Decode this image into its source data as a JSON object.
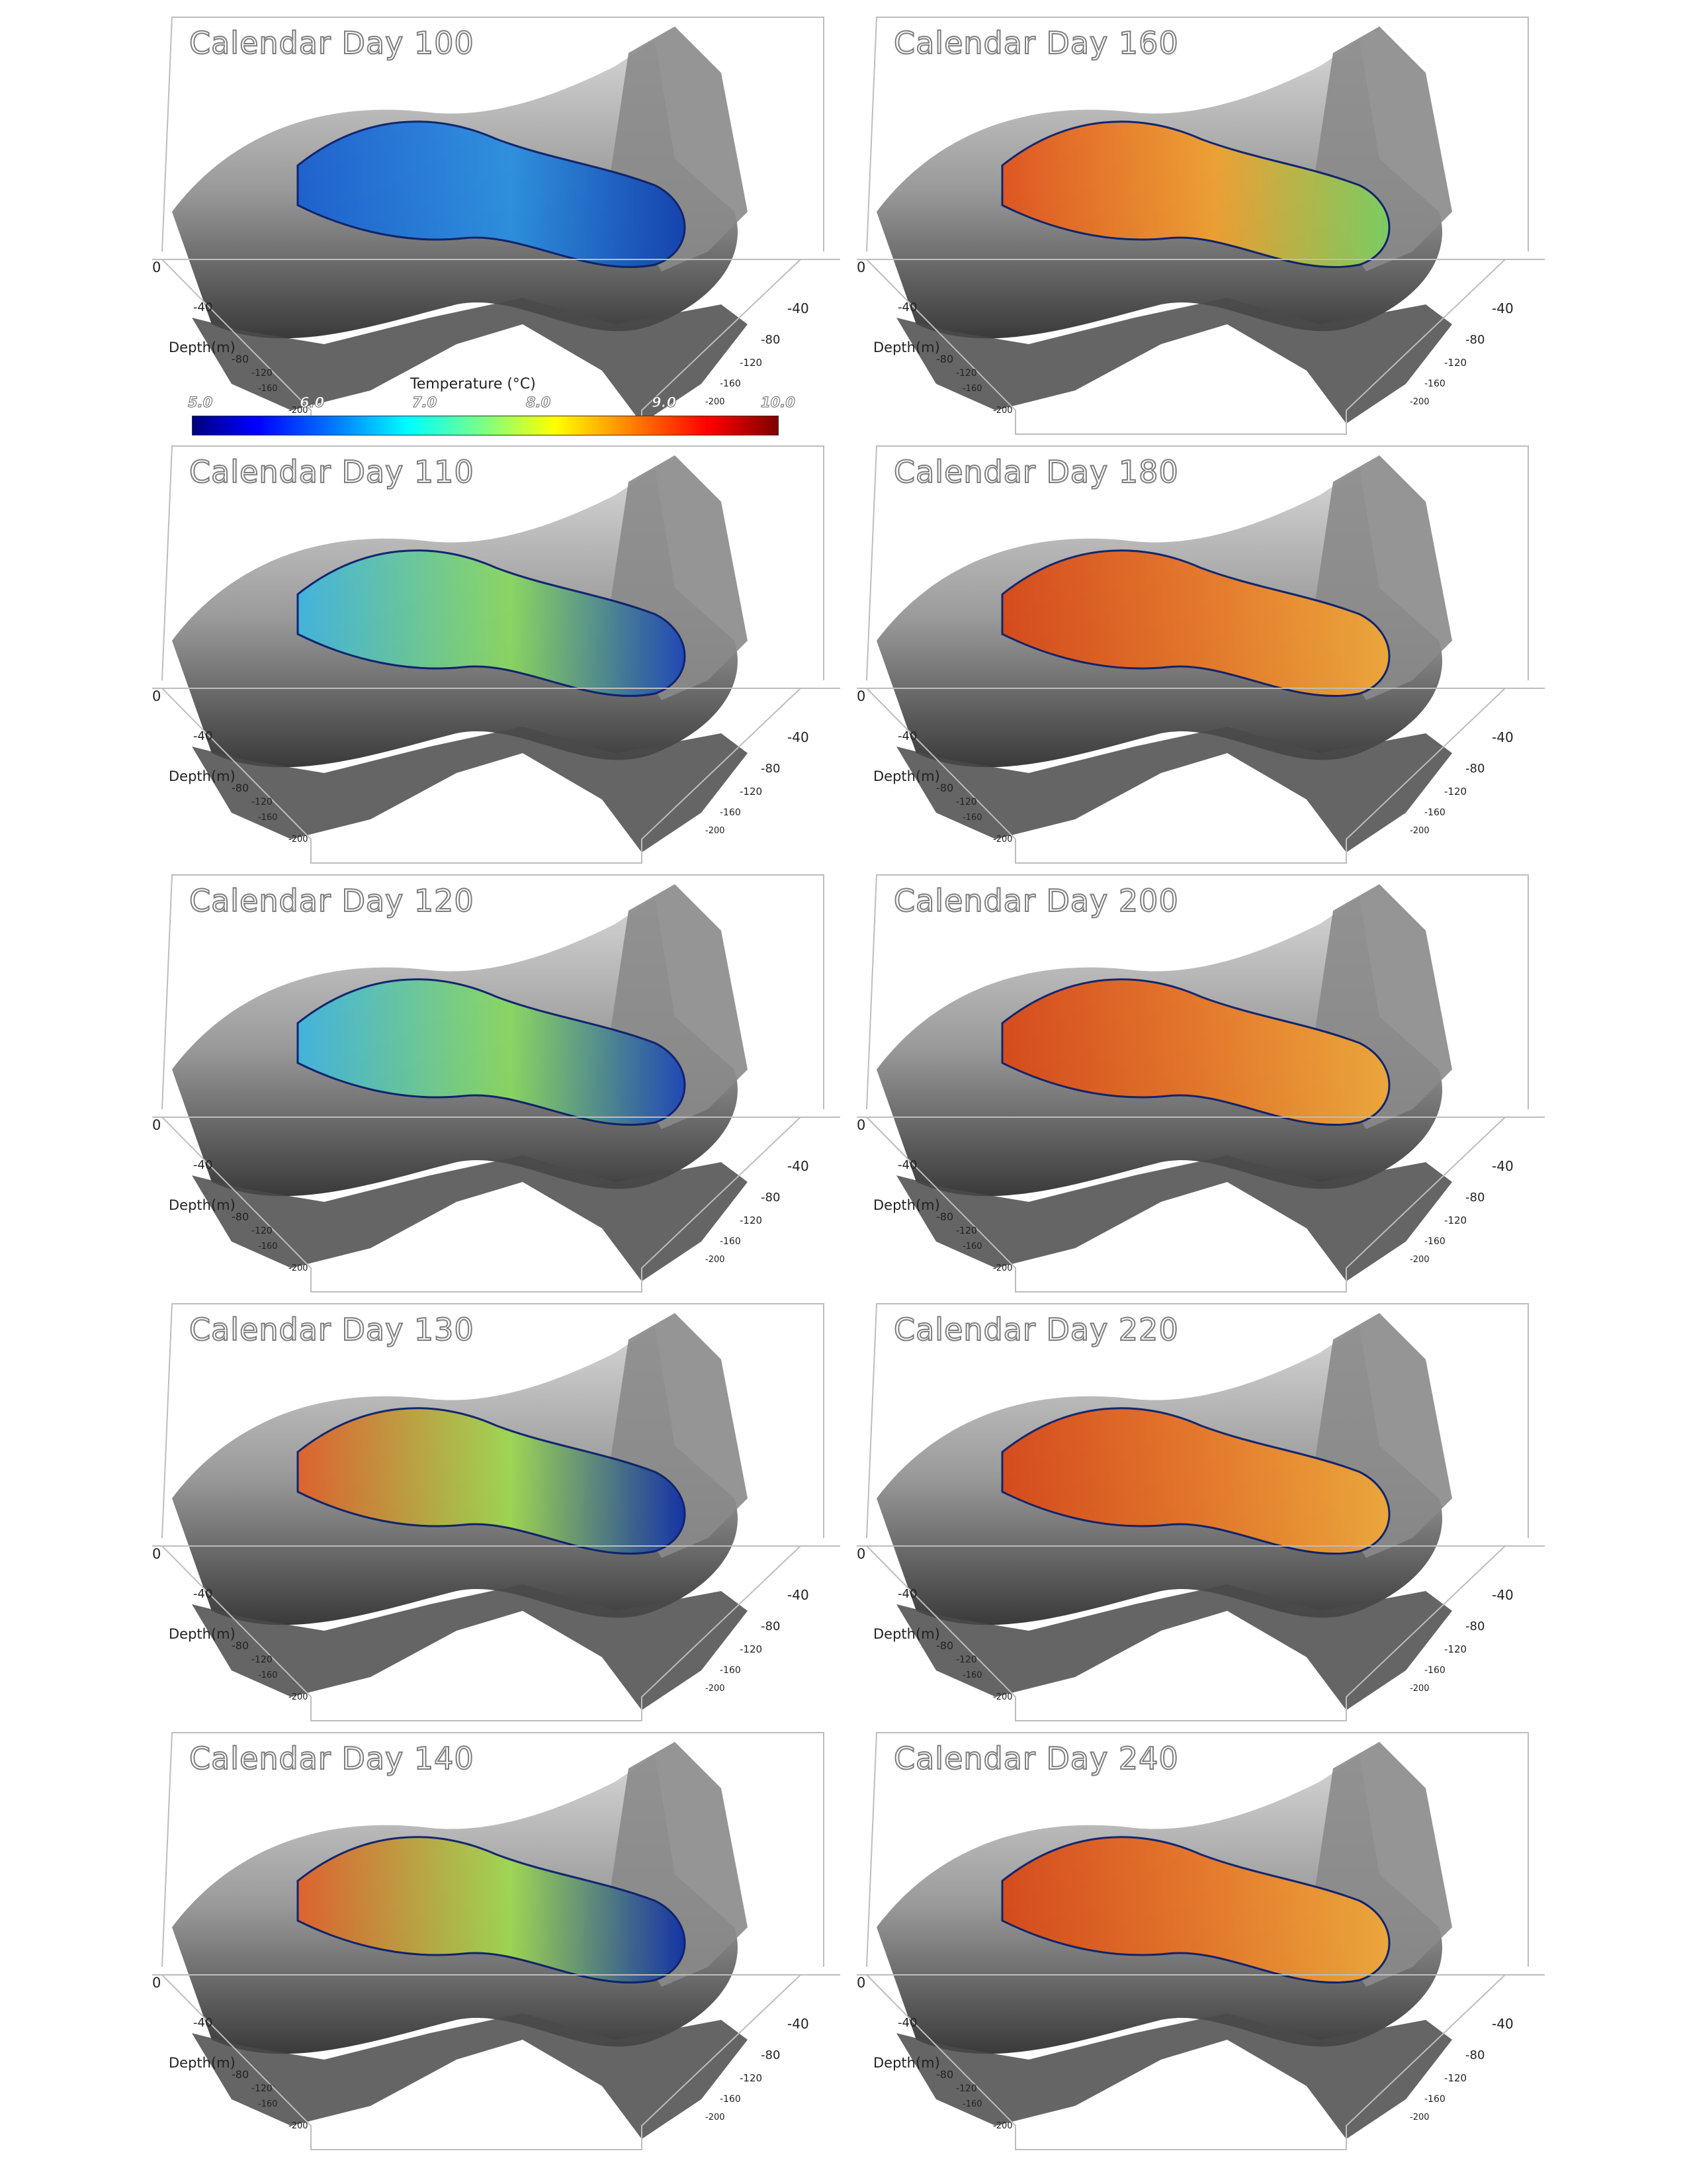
{
  "panels": [
    {
      "title": "Calendar Day 100",
      "plume": "blue"
    },
    {
      "title": "Calendar Day 160",
      "plume": "warm"
    },
    {
      "title": "Calendar Day 110",
      "plume": "cool"
    },
    {
      "title": "Calendar Day 180",
      "plume": "hot"
    },
    {
      "title": "Calendar Day 120",
      "plume": "cool"
    },
    {
      "title": "Calendar Day 200",
      "plume": "hot"
    },
    {
      "title": "Calendar Day 130",
      "plume": "mixed"
    },
    {
      "title": "Calendar Day 220",
      "plume": "hot"
    },
    {
      "title": "Calendar Day 140",
      "plume": "mixed"
    },
    {
      "title": "Calendar Day 240",
      "plume": "hot"
    }
  ],
  "axis": {
    "depth_label": "Depth(m)",
    "zero": "0",
    "left_ticks": [
      "-40",
      "-80",
      "-120",
      "-160",
      "-200"
    ],
    "right_ticks": [
      "-40",
      "-80",
      "-120",
      "-160",
      "-200"
    ]
  },
  "colorbar": {
    "title": "Temperature (°C)",
    "ticks": [
      "5.0",
      "6.0",
      "7.0",
      "8.0",
      "9.0",
      "10.0"
    ],
    "colors": [
      "#00007f",
      "#0000ff",
      "#0080ff",
      "#00ffff",
      "#80ff80",
      "#ffff00",
      "#ff8000",
      "#ff0000",
      "#7f0000"
    ]
  }
}
